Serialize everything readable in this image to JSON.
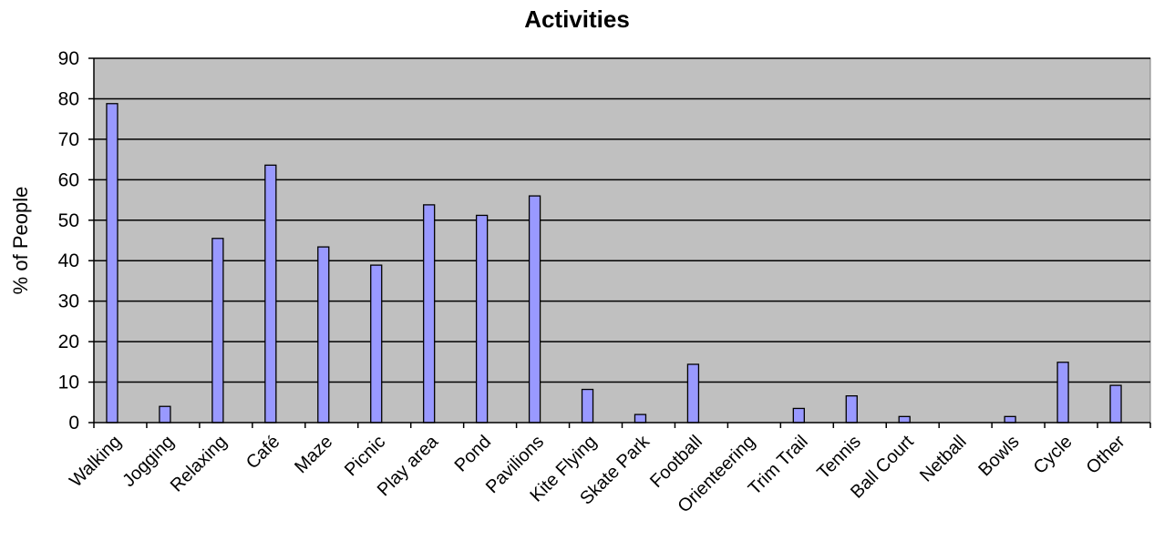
{
  "chart_data": {
    "type": "bar",
    "title": "Activities",
    "xlabel": "",
    "ylabel": "% of People",
    "ylim": [
      0,
      90
    ],
    "yticks": [
      0,
      10,
      20,
      30,
      40,
      50,
      60,
      70,
      80,
      90
    ],
    "grid": true,
    "legend": "none",
    "categories": [
      "Walking",
      "Jogging",
      "Relaxing",
      "Café",
      "Maze",
      "Picnic",
      "Play area",
      "Pond",
      "Pavilions",
      "Kite Flying",
      "Skate Park",
      "Football",
      "Orienteering",
      "Trim Trail",
      "Tennis",
      "Ball Court",
      "Netball",
      "Bowls",
      "Cycle",
      "Other"
    ],
    "values": [
      78.8,
      4.0,
      45.5,
      63.6,
      43.4,
      38.9,
      53.8,
      51.2,
      56.0,
      8.2,
      2.0,
      14.4,
      0,
      3.5,
      6.6,
      1.5,
      0,
      1.5,
      14.9,
      9.2
    ],
    "colors": {
      "bar_fill": "#9999ff",
      "bar_stroke": "#000000",
      "plot_bg": "#c0c0c0",
      "grid": "#000000"
    }
  }
}
